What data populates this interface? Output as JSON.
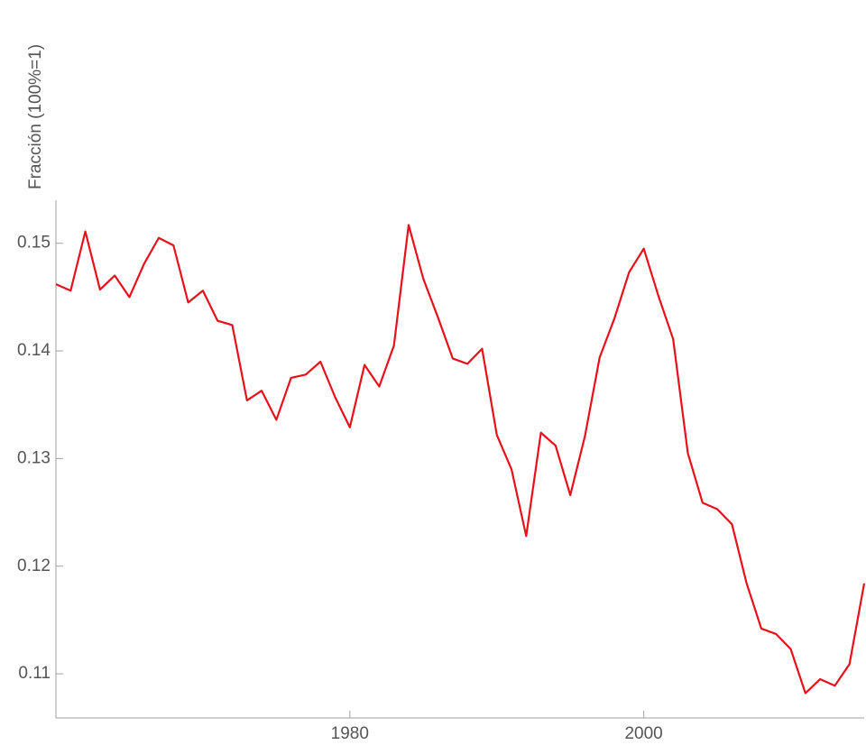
{
  "chart_data": {
    "type": "line",
    "y_label": "Fracción (100%=1)",
    "x": [
      1960,
      1961,
      1962,
      1963,
      1964,
      1965,
      1966,
      1967,
      1968,
      1969,
      1970,
      1971,
      1972,
      1973,
      1974,
      1975,
      1976,
      1977,
      1978,
      1979,
      1980,
      1981,
      1982,
      1983,
      1984,
      1985,
      1986,
      1987,
      1988,
      1989,
      1990,
      1991,
      1992,
      1993,
      1994,
      1995,
      1996,
      1997,
      1998,
      1999,
      2000,
      2001,
      2002,
      2003,
      2004,
      2005,
      2006,
      2007,
      2008,
      2009,
      2010,
      2011,
      2012,
      2013,
      2014,
      2015
    ],
    "series": [
      {
        "name": "Fracción",
        "color": "#e8101a",
        "values": [
          0.1462,
          0.1456,
          0.1511,
          0.1457,
          0.147,
          0.145,
          0.1481,
          0.1505,
          0.1498,
          0.1445,
          0.1456,
          0.1428,
          0.1424,
          0.1354,
          0.1363,
          0.1336,
          0.1375,
          0.1378,
          0.139,
          0.1357,
          0.1329,
          0.1387,
          0.1367,
          0.1405,
          0.1517,
          0.1467,
          0.1431,
          0.1393,
          0.1388,
          0.1402,
          0.1322,
          0.129,
          0.1228,
          0.1324,
          0.1312,
          0.1266,
          0.1321,
          0.1394,
          0.143,
          0.1473,
          0.1495,
          0.1451,
          0.1411,
          0.1305,
          0.1259,
          0.1253,
          0.1239,
          0.1184,
          0.1142,
          0.1137,
          0.1123,
          0.1082,
          0.1095,
          0.1089,
          0.1109,
          0.1184
        ]
      }
    ],
    "xlim": [
      1960,
      2015
    ],
    "xticks": [
      1980,
      2000
    ],
    "ylim": [
      0.1059,
      0.154
    ],
    "yticks": [
      0.11,
      0.12,
      0.13,
      0.14,
      0.15
    ]
  }
}
